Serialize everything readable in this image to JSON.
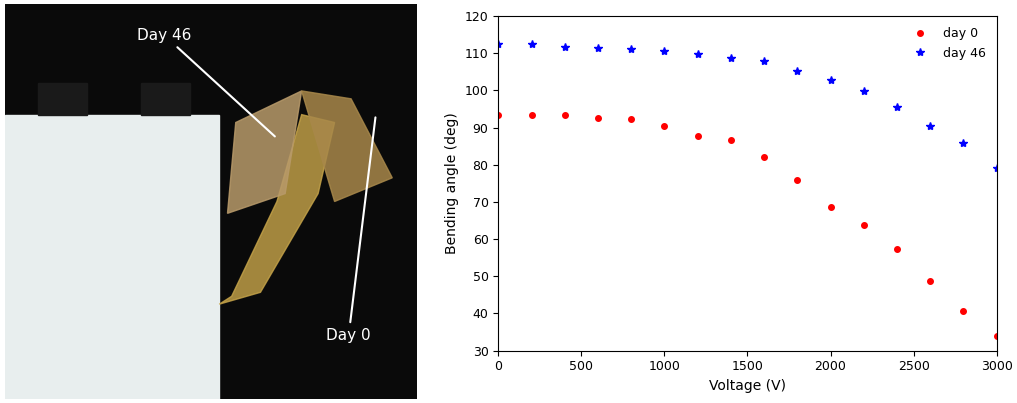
{
  "chart_data": [
    {
      "type": "image",
      "annotations": [
        "Day 46",
        "Day 0"
      ]
    },
    {
      "type": "scatter",
      "x": [
        0,
        200,
        400,
        600,
        800,
        1000,
        1200,
        1400,
        1600,
        1800,
        2000,
        2200,
        2400,
        2600,
        2800,
        3000
      ],
      "series": [
        {
          "name": "day 0",
          "color": "#ff0000",
          "marker": "circle",
          "values": [
            93.5,
            93.5,
            93.3,
            92.7,
            92.3,
            90.5,
            87.8,
            86.7,
            82.0,
            76.0,
            68.7,
            63.7,
            57.3,
            48.8,
            40.7,
            33.8
          ]
        },
        {
          "name": "day 46",
          "color": "#0000ff",
          "marker": "star",
          "values": [
            112.5,
            112.5,
            111.7,
            111.5,
            111.2,
            110.5,
            109.7,
            108.8,
            107.8,
            105.3,
            102.8,
            99.8,
            95.5,
            90.5,
            85.8,
            79.0
          ]
        }
      ],
      "x_label": "Voltage (V)",
      "y_label": "Bending angle (deg)",
      "xlim": [
        0,
        3000
      ],
      "xticks": [
        0,
        500,
        1000,
        1500,
        2000,
        2500,
        3000
      ],
      "ylim": [
        30,
        120
      ],
      "yticks": [
        30,
        40,
        50,
        60,
        70,
        80,
        90,
        100,
        110,
        120
      ],
      "legend": "upper right"
    }
  ]
}
